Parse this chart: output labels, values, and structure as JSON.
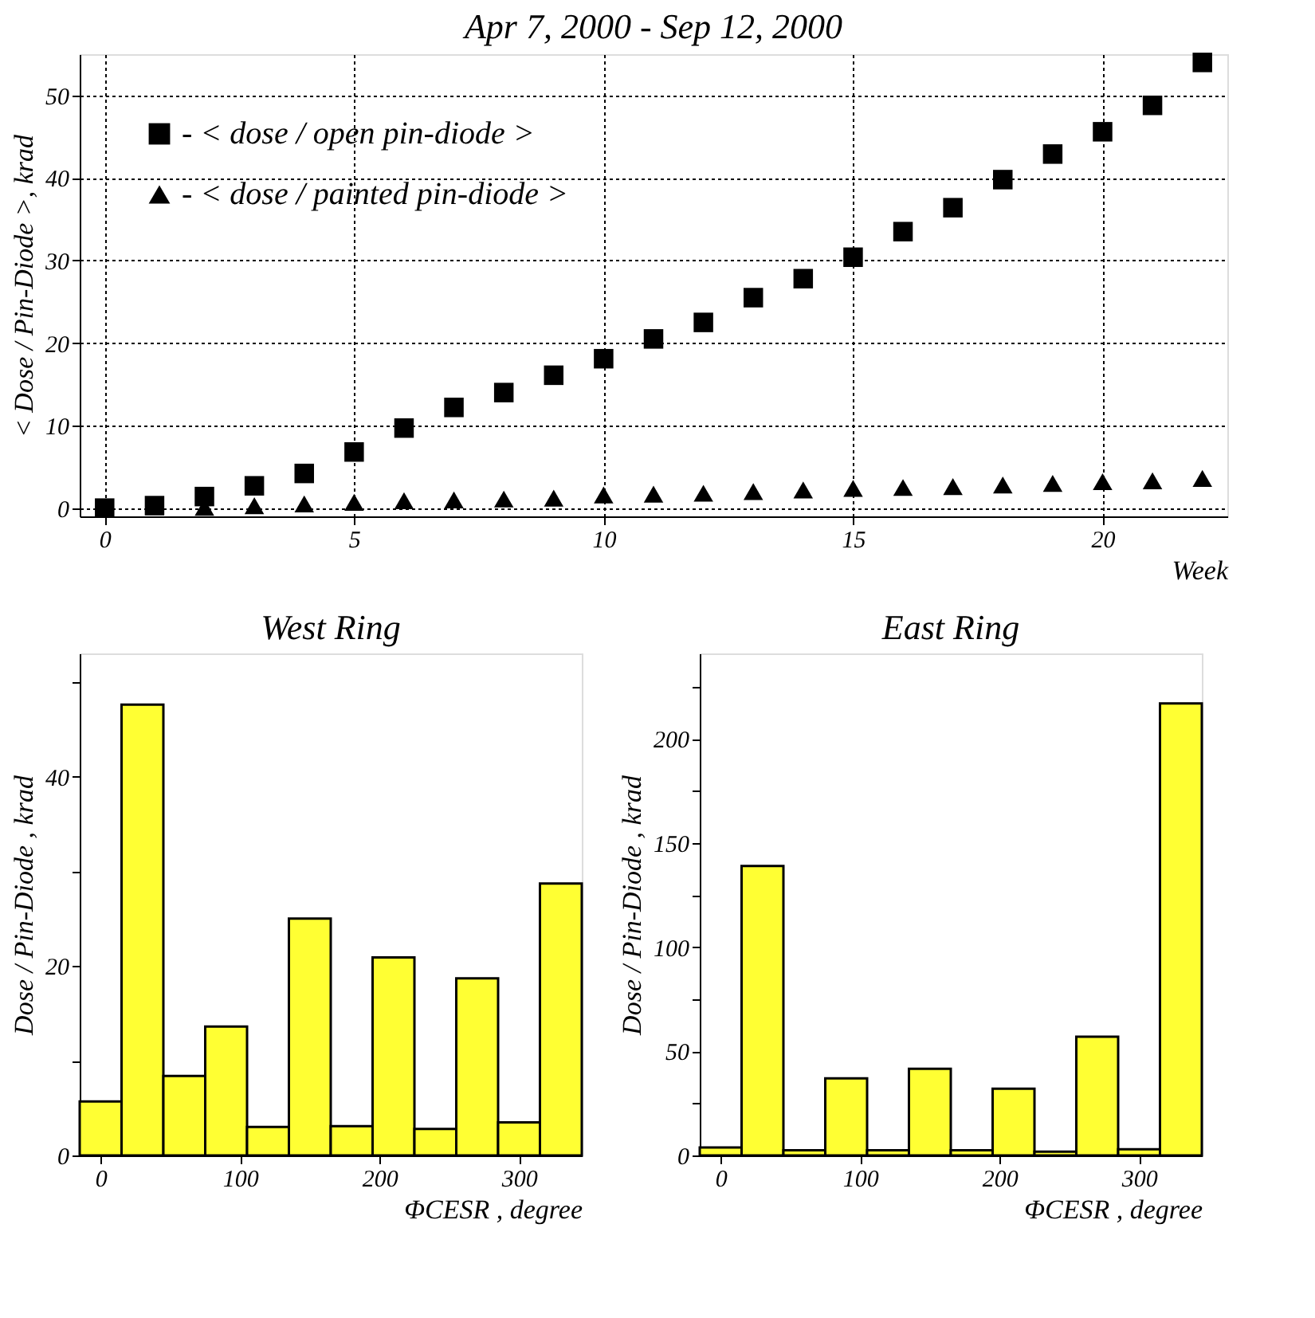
{
  "chart_data": [
    {
      "type": "scatter",
      "title": "Apr 7, 2000 - Sep 12, 2000",
      "xlabel": "Week",
      "ylabel": "< Dose / Pin-Diode >, krad",
      "x": [
        0,
        1,
        2,
        3,
        4,
        5,
        6,
        7,
        8,
        9,
        10,
        11,
        12,
        13,
        14,
        15,
        16,
        17,
        18,
        19,
        20,
        21,
        22
      ],
      "series": [
        {
          "name": "- < dose / open pin-diode >",
          "color": "#000000",
          "marker": "square",
          "values": [
            0,
            0.3,
            1.4,
            2.7,
            4.2,
            6.8,
            9.7,
            12.2,
            14,
            16.1,
            18.1,
            20.5,
            22.5,
            25.5,
            27.8,
            30.4,
            33.5,
            36.4,
            39.8,
            42.9,
            45.6,
            48.8,
            54.0
          ]
        },
        {
          "name": "- < dose / painted pin-diode >",
          "color": "#000000",
          "marker": "triangle",
          "values": [
            null,
            null,
            0.1,
            0.3,
            0.5,
            0.7,
            0.9,
            1.0,
            1.1,
            1.2,
            1.6,
            1.7,
            1.8,
            2.0,
            2.2,
            2.4,
            2.5,
            2.6,
            2.8,
            3.0,
            3.2,
            3.3,
            3.6
          ]
        }
      ],
      "xlim": [
        -0.5,
        22.5
      ],
      "xticks": [
        0,
        5,
        10,
        15,
        20
      ],
      "ylim": [
        -1,
        55
      ],
      "yticks": [
        0,
        10,
        20,
        30,
        40,
        50
      ],
      "grid": true,
      "legend": "top left"
    },
    {
      "type": "histogram",
      "title": "West Ring",
      "xlabel": "ΦCESR , degree",
      "ylabel": "Dose / Pin-Diode , krad",
      "bins": [
        -15,
        15,
        45,
        75,
        105,
        135,
        165,
        195,
        225,
        255,
        285,
        315,
        345
      ],
      "values": [
        5.7,
        47.6,
        8.4,
        13.6,
        3.0,
        25.0,
        3.1,
        20.9,
        2.8,
        18.7,
        3.5,
        28.7
      ],
      "color": "#ffff33",
      "xlim": [
        -15,
        345
      ],
      "xticks": [
        0,
        100,
        200,
        300
      ],
      "ylim": [
        0,
        53
      ],
      "yticks": [
        0,
        {
          "value": 10,
          "label": null
        },
        20,
        {
          "value": 30,
          "label": null
        },
        40,
        {
          "value": 50,
          "label": null
        }
      ]
    },
    {
      "type": "histogram",
      "title": "East Ring",
      "xlabel": "ΦCESR , degree",
      "ylabel": "Dose / Pin-Diode , krad",
      "bins": [
        -15,
        15,
        45,
        75,
        105,
        135,
        165,
        195,
        225,
        255,
        285,
        315,
        345
      ],
      "values": [
        3.8,
        139,
        2.5,
        37,
        2.5,
        41.6,
        2.5,
        32,
        1.8,
        57,
        3,
        217
      ],
      "color": "#ffff33",
      "xlim": [
        -15,
        345
      ],
      "xticks": [
        0,
        100,
        200,
        300
      ],
      "ylim": [
        0,
        241
      ],
      "yticks": [
        0,
        {
          "value": 25,
          "label": null
        },
        50,
        {
          "value": 75,
          "label": null
        },
        100,
        {
          "value": 125,
          "label": null
        },
        150,
        {
          "value": 175,
          "label": null
        },
        200,
        {
          "value": 225,
          "label": null
        }
      ]
    }
  ]
}
